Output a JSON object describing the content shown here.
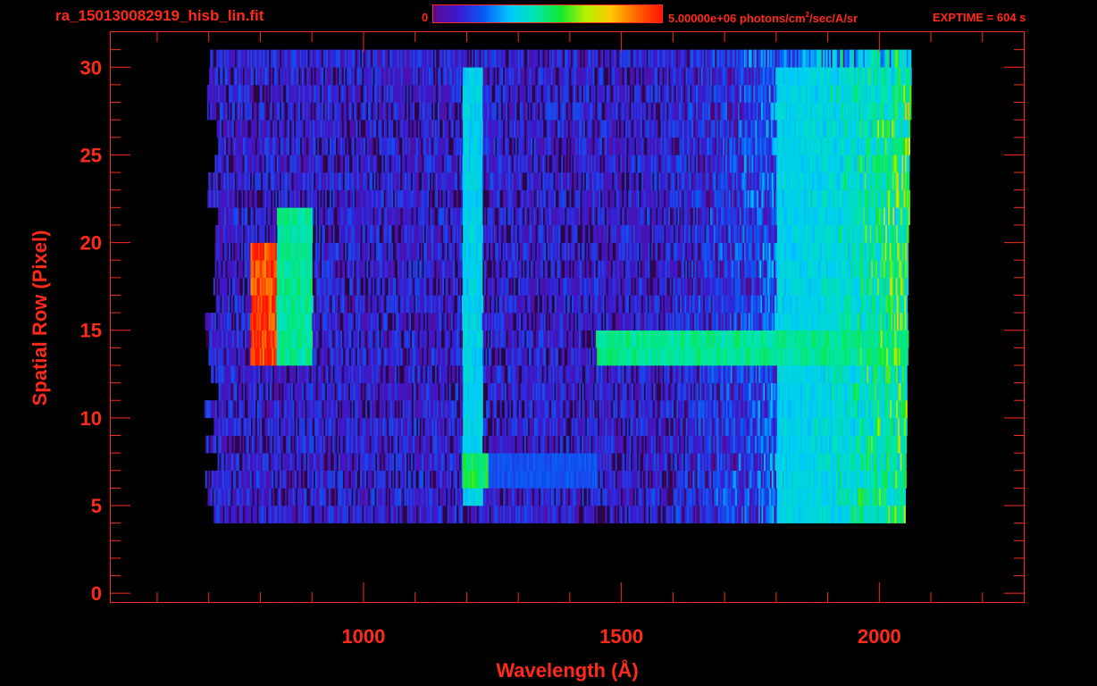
{
  "header": {
    "filename": "ra_150130082919_hisb_lin.fit",
    "colorbar_min_label": "0",
    "colorbar_max_prefix": "5.00000e+06 photons/cm",
    "colorbar_max_sup": "2",
    "colorbar_max_suffix": "/sec/A/sr",
    "exptime": "EXPTIME = 604 s"
  },
  "colors": {
    "axis": "#ff2a1a",
    "background": "#000000",
    "colormap": [
      "#000000",
      "#5a0a8c",
      "#3a1ad0",
      "#0a5af5",
      "#00c8ff",
      "#00e6b0",
      "#10e830",
      "#b4f000",
      "#ffc800",
      "#ff6400",
      "#ff1400"
    ]
  },
  "chart_data": {
    "type": "heatmap",
    "xlabel": "Wavelength (Å)",
    "ylabel": "Spatial Row (Pixel)",
    "xlim": [
      510,
      2280
    ],
    "ylim": [
      -0.5,
      32
    ],
    "xticks": [
      1000,
      1500,
      2000
    ],
    "xtick_labels": [
      "1000",
      "1500",
      "2000"
    ],
    "yticks": [
      0,
      5,
      10,
      15,
      20,
      25,
      30
    ],
    "ytick_labels": [
      "0",
      "5",
      "10",
      "15",
      "20",
      "25",
      "30"
    ],
    "colorbar_range": [
      0,
      5000000
    ],
    "colorbar_units": "photons/cm^2/sec/A/sr",
    "spectral_range_by_row": {
      "rows": [
        4,
        30
      ],
      "x_start": 690,
      "x_end_row_30": 2060,
      "x_end_row_4": 2050
    },
    "features": [
      {
        "wavelength_range": [
          780,
          830
        ],
        "rows": [
          13,
          20
        ],
        "intensity": 1.0
      },
      {
        "wavelength_range": [
          830,
          900
        ],
        "rows": [
          13,
          22
        ],
        "intensity": 0.55
      },
      {
        "wavelength_range": [
          1190,
          1230
        ],
        "rows": [
          5,
          30
        ],
        "intensity": 0.45
      },
      {
        "wavelength_range": [
          1190,
          1240
        ],
        "rows": [
          6,
          8
        ],
        "intensity": 0.6
      },
      {
        "wavelength_range": [
          1240,
          1450
        ],
        "rows": [
          6,
          8
        ],
        "intensity": 0.3
      },
      {
        "wavelength_range": [
          1450,
          2060
        ],
        "rows": [
          13,
          15
        ],
        "intensity": 0.55
      },
      {
        "wavelength_range": [
          1800,
          2060
        ],
        "rows": [
          4,
          30
        ],
        "intensity": 0.45
      }
    ]
  }
}
